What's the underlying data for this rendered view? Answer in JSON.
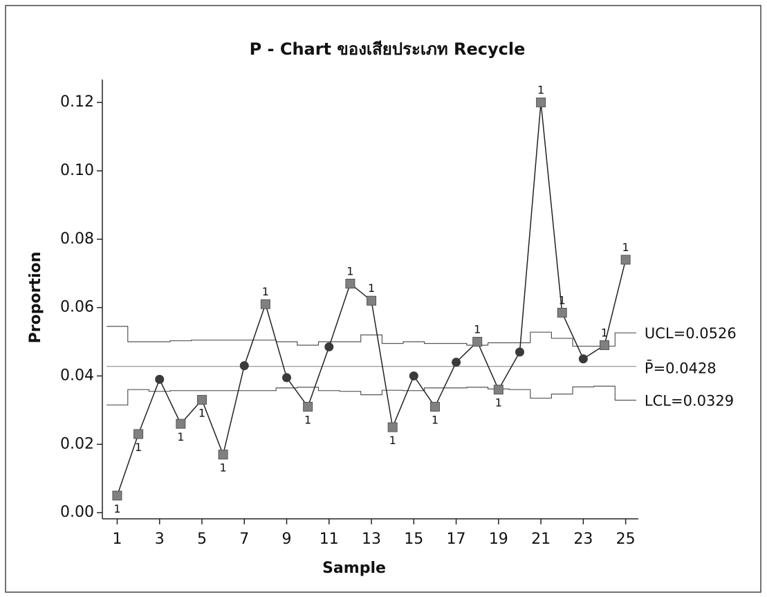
{
  "chart_data": {
    "type": "p-chart",
    "title": "P - Chart ของเสียประเภท Recycle",
    "x_label": "Sample",
    "y_label": "Proportion",
    "x": [
      1,
      2,
      3,
      4,
      5,
      6,
      7,
      8,
      9,
      10,
      11,
      12,
      13,
      14,
      15,
      16,
      17,
      18,
      19,
      20,
      21,
      22,
      23,
      24,
      25
    ],
    "values": [
      0.005,
      0.023,
      0.039,
      0.026,
      0.033,
      0.017,
      0.043,
      0.061,
      0.0395,
      0.031,
      0.0485,
      0.067,
      0.062,
      0.025,
      0.04,
      0.031,
      0.044,
      0.05,
      0.036,
      0.047,
      0.12,
      0.0585,
      0.045,
      0.049,
      0.074
    ],
    "test_flags": [
      "1",
      "1",
      null,
      "1",
      "1",
      "1",
      null,
      "1",
      null,
      "1",
      null,
      "1",
      "1",
      "1",
      null,
      "1",
      null,
      "1",
      "1",
      null,
      "1",
      "1",
      null,
      "1",
      "1"
    ],
    "ucl": [
      0.0545,
      0.05,
      0.05,
      0.0503,
      0.0505,
      0.0505,
      0.0505,
      0.0505,
      0.05,
      0.049,
      0.05,
      0.05,
      0.052,
      0.0495,
      0.05,
      0.0495,
      0.0495,
      0.049,
      0.0497,
      0.0497,
      0.0528,
      0.051,
      0.0487,
      0.0487,
      0.0526
    ],
    "lcl": [
      0.0315,
      0.036,
      0.0355,
      0.0357,
      0.0357,
      0.0357,
      0.0357,
      0.0357,
      0.0365,
      0.0367,
      0.0357,
      0.0355,
      0.0345,
      0.0358,
      0.0357,
      0.0365,
      0.0365,
      0.0367,
      0.0362,
      0.036,
      0.0335,
      0.0347,
      0.0368,
      0.037,
      0.0329
    ],
    "center": 0.0428,
    "ucl_label": "UCL=0.0526",
    "center_label": "P̄=0.0428",
    "lcl_label": "LCL=0.0329",
    "xlim": [
      0.3,
      25.6
    ],
    "ylim": [
      -0.0018,
      0.1267
    ],
    "xticks": [
      1,
      3,
      5,
      7,
      9,
      11,
      13,
      15,
      17,
      19,
      21,
      23,
      25
    ],
    "yticks": [
      {
        "value": 0,
        "label": "0.00"
      },
      {
        "value": 0.02,
        "label": "0.02"
      },
      {
        "value": 0.04,
        "label": "0.04"
      },
      {
        "value": 0.06,
        "label": "0.06"
      },
      {
        "value": 0.08,
        "label": "0.08"
      },
      {
        "value": 0.1,
        "label": "0.10"
      },
      {
        "value": 0.12,
        "label": "0.12"
      }
    ],
    "color": "#222222",
    "flag_marker_color": "#808080",
    "marker_color": "#3a3a3a",
    "limit_color": "#555555",
    "center_color": "#999999"
  }
}
